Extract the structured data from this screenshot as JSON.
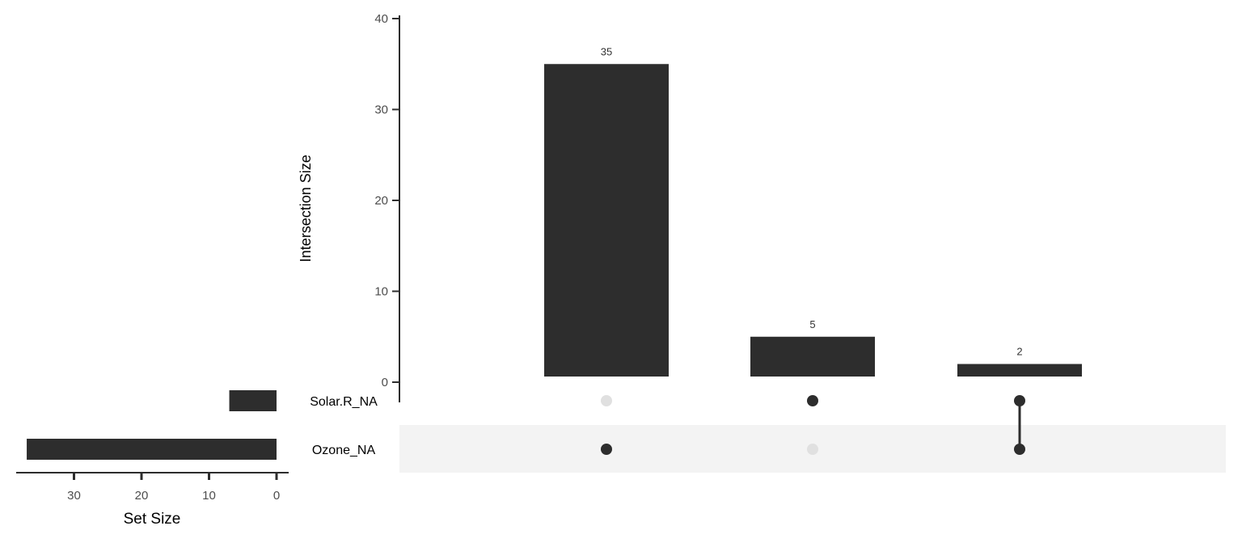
{
  "chart_data": {
    "type": "upset",
    "intersection_chart": {
      "type": "bar",
      "ylabel": "Intersection Size",
      "ylim": [
        0,
        40
      ],
      "yticks": [
        0,
        10,
        20,
        30,
        40
      ],
      "grid": false,
      "intersections": [
        {
          "sets": [
            "Ozone_NA"
          ],
          "value": 35,
          "label": "35"
        },
        {
          "sets": [
            "Solar.R_NA"
          ],
          "value": 5,
          "label": "5"
        },
        {
          "sets": [
            "Solar.R_NA",
            "Ozone_NA"
          ],
          "value": 2,
          "label": "2"
        }
      ]
    },
    "set_size_chart": {
      "type": "bar",
      "orientation": "horizontal-reversed",
      "xlabel": "Set Size",
      "xticks": [
        30,
        20,
        10,
        0
      ],
      "sets": [
        {
          "name": "Solar.R_NA",
          "value": 7
        },
        {
          "name": "Ozone_NA",
          "value": 37
        }
      ]
    },
    "colors": {
      "bar": "#2d2d2d",
      "dot_active": "#2d2d2d",
      "dot_inactive": "#e0e0e0",
      "row_shade": "#f3f3f3",
      "text": "#4d4d4d"
    }
  }
}
